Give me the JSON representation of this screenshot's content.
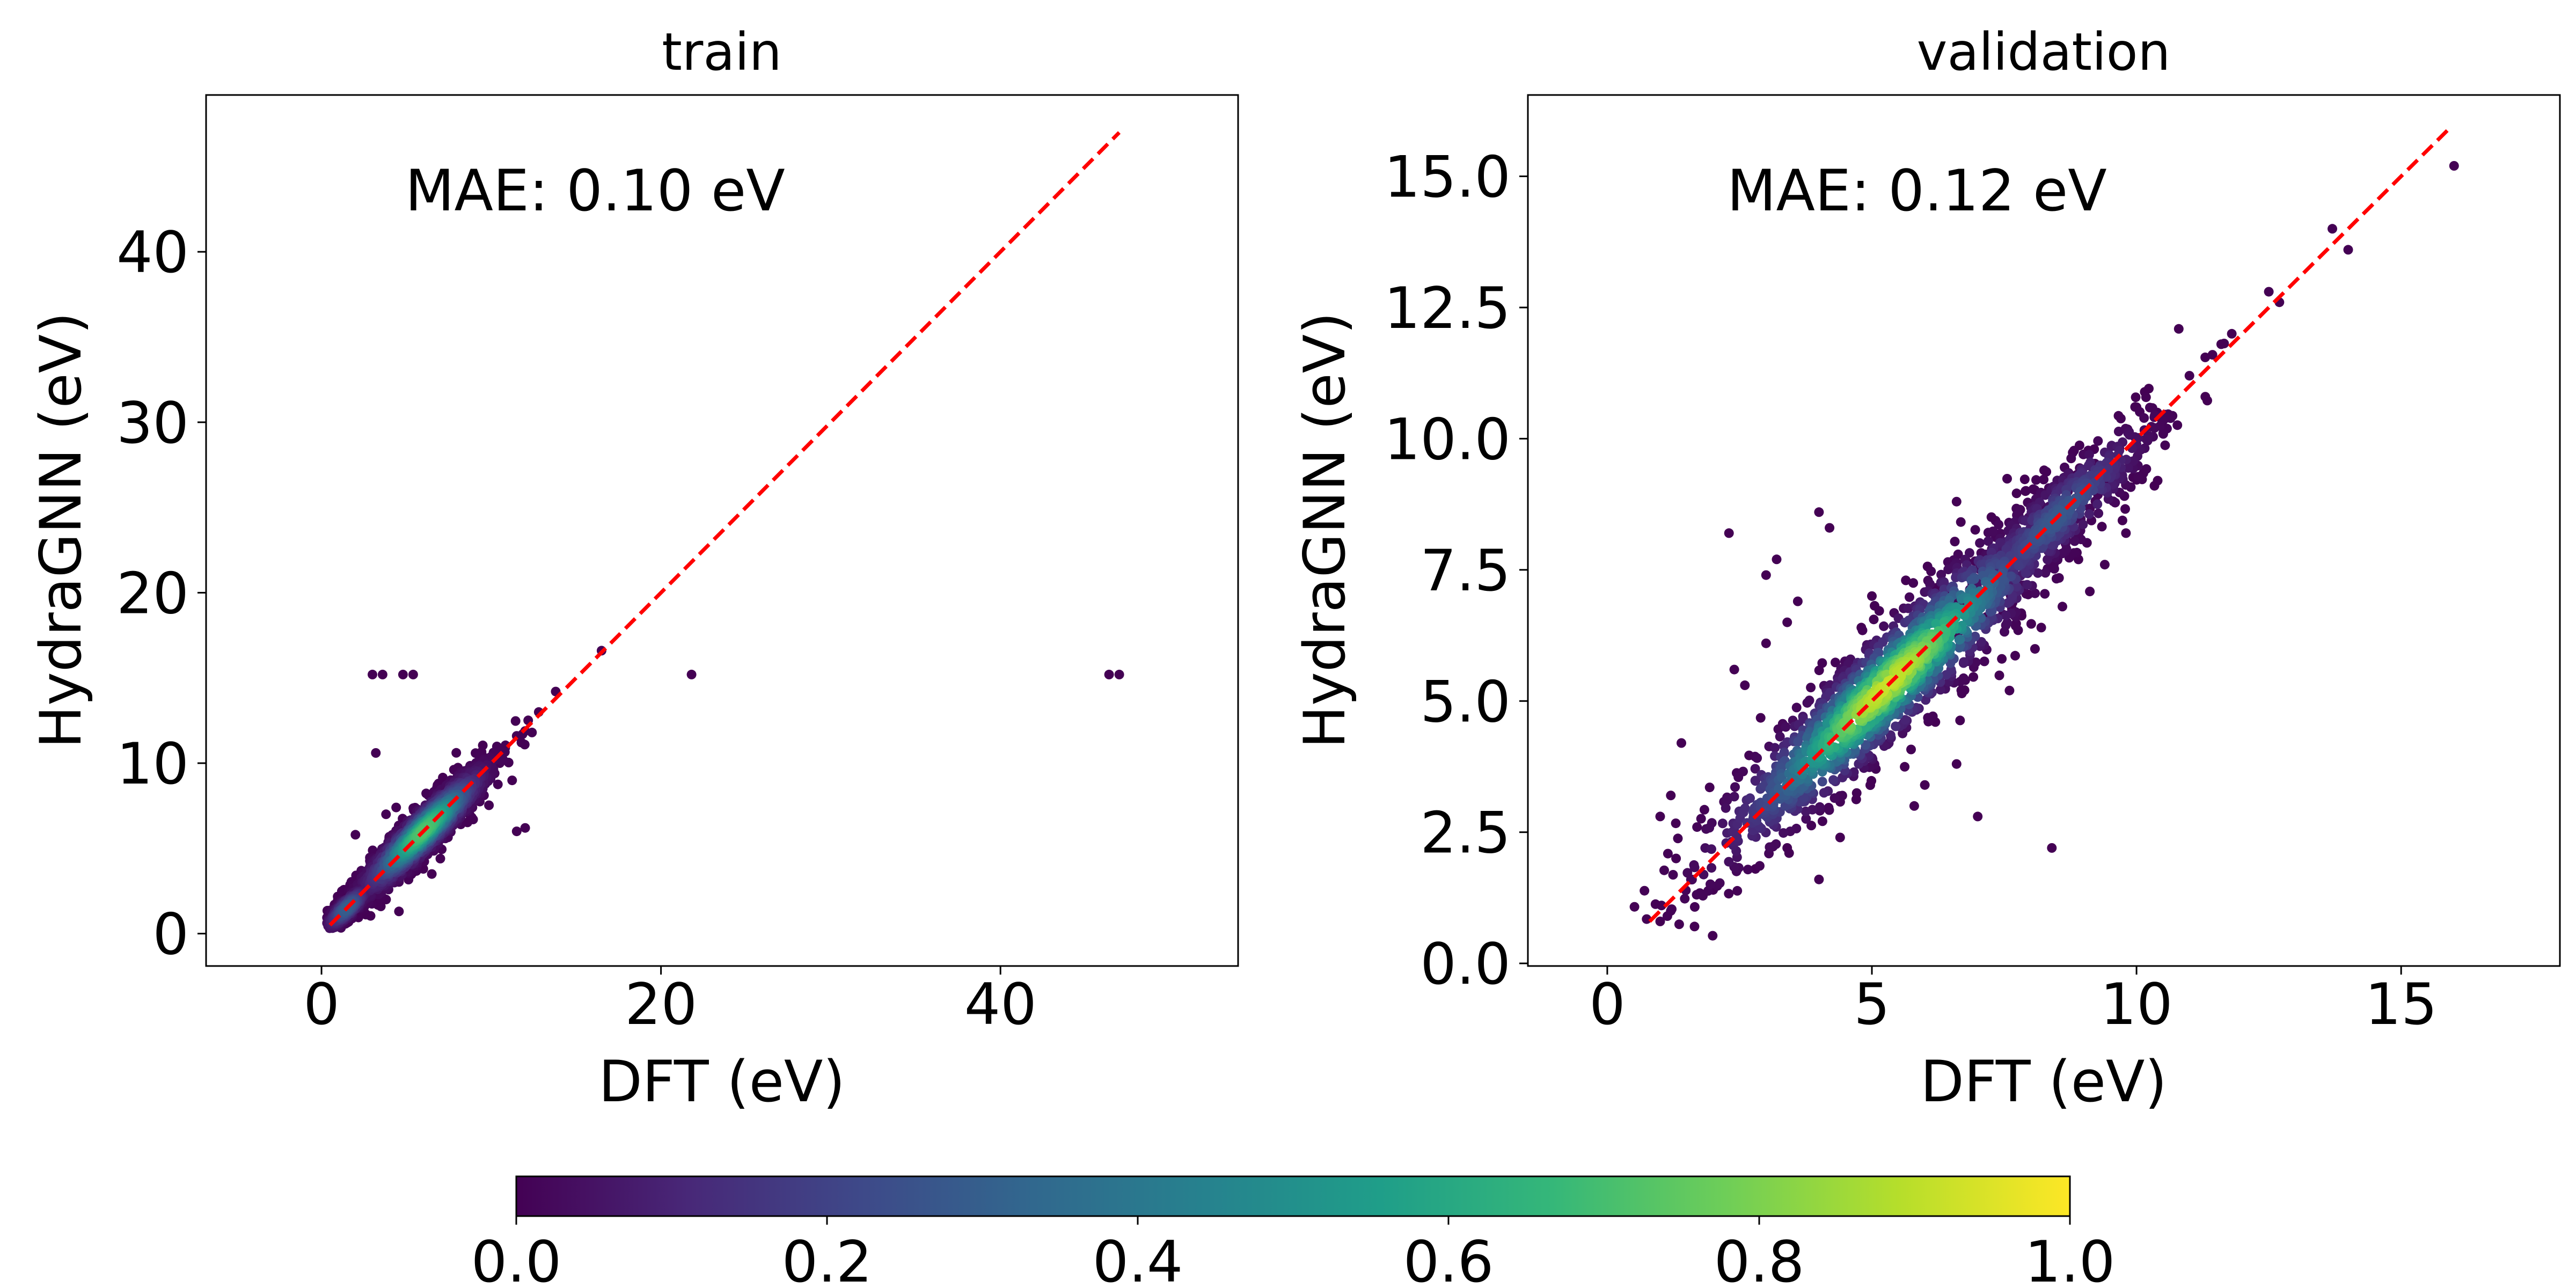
{
  "colormap": {
    "name": "viridis",
    "stops": [
      "#440154",
      "#482878",
      "#3e4989",
      "#31688e",
      "#26828e",
      "#1f9e89",
      "#35b779",
      "#6ece58",
      "#b5de2b",
      "#fde725"
    ]
  },
  "colorbar": {
    "range": [
      0.0,
      1.0
    ],
    "ticks": [
      0.0,
      0.2,
      0.4,
      0.6,
      0.8,
      1.0
    ],
    "tick_labels": [
      "0.0",
      "0.2",
      "0.4",
      "0.6",
      "0.8",
      "1.0"
    ]
  },
  "chart_data": [
    {
      "type": "scatter",
      "title": "train",
      "xlabel": "DFT (eV)",
      "ylabel": "HydraGNN (eV)",
      "annotation": "MAE: 0.10 eV",
      "xlim": [
        -6.8,
        54.0
      ],
      "ylim": [
        -1.9,
        49.2
      ],
      "xticks": [
        0,
        20,
        40
      ],
      "xtick_labels": [
        "0",
        "20",
        "40"
      ],
      "yticks": [
        0,
        10,
        20,
        30,
        40
      ],
      "ytick_labels": [
        "0",
        "10",
        "20",
        "30",
        "40"
      ],
      "reference_line": {
        "from": [
          0.5,
          0.5
        ],
        "to": [
          47,
          47
        ],
        "color": "#ff0000",
        "style": "dashed"
      },
      "point_color": "#440154",
      "dense_clusters": [
        {
          "center": [
            6.0,
            6.0
          ],
          "sigma_parallel": 2.8,
          "sigma_perp": 0.55,
          "peak_density": 0.72
        },
        {
          "center": [
            1.5,
            1.5
          ],
          "sigma_parallel": 1.0,
          "sigma_perp": 0.3,
          "peak_density": 0.3
        }
      ],
      "points": [
        [
          3.0,
          15.2
        ],
        [
          3.6,
          15.2
        ],
        [
          4.8,
          15.2
        ],
        [
          5.4,
          15.2
        ],
        [
          21.8,
          15.2
        ],
        [
          46.4,
          15.2
        ],
        [
          47.0,
          15.2
        ],
        [
          3.2,
          10.6
        ],
        [
          16.5,
          16.6
        ],
        [
          12.0,
          6.2
        ],
        [
          11.5,
          6.0
        ],
        [
          2.0,
          5.8
        ],
        [
          13.8,
          14.2
        ],
        [
          12.8,
          13.0
        ],
        [
          11.5,
          11.6
        ],
        [
          9.5,
          10.4
        ],
        [
          10.5,
          10.0
        ],
        [
          8.0,
          9.2
        ],
        [
          8.8,
          8.6
        ],
        [
          2.4,
          3.4
        ],
        [
          3.8,
          7.0
        ],
        [
          4.4,
          7.4
        ],
        [
          5.6,
          7.2
        ],
        [
          7.0,
          4.4
        ],
        [
          6.0,
          3.8
        ],
        [
          4.0,
          4.8
        ],
        [
          5.0,
          4.0
        ],
        [
          6.8,
          7.6
        ],
        [
          7.6,
          6.6
        ],
        [
          2.8,
          2.2
        ],
        [
          3.4,
          2.6
        ],
        [
          1.6,
          2.4
        ],
        [
          1.0,
          1.6
        ],
        [
          0.8,
          0.6
        ],
        [
          1.2,
          0.9
        ],
        [
          2.2,
          1.5
        ],
        [
          9.0,
          8.0
        ],
        [
          10.2,
          9.4
        ],
        [
          8.4,
          7.4
        ],
        [
          12.4,
          11.8
        ]
      ]
    },
    {
      "type": "scatter",
      "title": "validation",
      "xlabel": "DFT (eV)",
      "ylabel": "HydraGNN (eV)",
      "annotation": "MAE: 0.12 eV",
      "xlim": [
        -1.5,
        18.0
      ],
      "ylim": [
        -0.05,
        16.55
      ],
      "xticks": [
        0,
        5,
        10,
        15
      ],
      "xtick_labels": [
        "0",
        "5",
        "10",
        "15"
      ],
      "yticks": [
        0.0,
        2.5,
        5.0,
        7.5,
        10.0,
        12.5,
        15.0
      ],
      "ytick_labels": [
        "0.0",
        "2.5",
        "5.0",
        "7.5",
        "10.0",
        "12.5",
        "15.0"
      ],
      "reference_line": {
        "from": [
          0.8,
          0.8
        ],
        "to": [
          15.9,
          15.9
        ],
        "color": "#ff0000",
        "style": "dashed"
      },
      "point_color": "#440154",
      "dense_clusters": [
        {
          "center": [
            5.3,
            5.3
          ],
          "sigma_parallel": 2.4,
          "sigma_perp": 0.42,
          "peak_density": 0.92
        },
        {
          "center": [
            8.5,
            8.5
          ],
          "sigma_parallel": 1.4,
          "sigma_perp": 0.32,
          "peak_density": 0.28
        }
      ],
      "points": [
        [
          16.0,
          15.2
        ],
        [
          13.7,
          14.0
        ],
        [
          12.5,
          12.8
        ],
        [
          12.7,
          12.6
        ],
        [
          11.8,
          12.0
        ],
        [
          11.0,
          11.2
        ],
        [
          11.3,
          10.8
        ],
        [
          10.6,
          10.4
        ],
        [
          2.3,
          8.2
        ],
        [
          3.2,
          7.7
        ],
        [
          3.0,
          7.4
        ],
        [
          4.0,
          8.6
        ],
        [
          4.2,
          8.3
        ],
        [
          2.4,
          5.6
        ],
        [
          2.6,
          5.3
        ],
        [
          3.0,
          6.1
        ],
        [
          3.6,
          6.9
        ],
        [
          3.4,
          6.5
        ],
        [
          6.6,
          8.8
        ],
        [
          7.9,
          9.0
        ],
        [
          8.2,
          6.4
        ],
        [
          8.6,
          6.8
        ],
        [
          6.0,
          3.4
        ],
        [
          5.8,
          3.0
        ],
        [
          6.6,
          3.8
        ],
        [
          7.0,
          2.8
        ],
        [
          8.4,
          2.2
        ],
        [
          4.4,
          2.4
        ],
        [
          4.0,
          1.6
        ],
        [
          2.0,
          1.4
        ],
        [
          1.0,
          2.8
        ],
        [
          1.2,
          3.2
        ],
        [
          1.4,
          4.2
        ],
        [
          1.3,
          2.0
        ],
        [
          1.6,
          1.6
        ],
        [
          1.0,
          0.8
        ],
        [
          1.2,
          1.0
        ],
        [
          9.8,
          8.2
        ],
        [
          9.4,
          7.6
        ],
        [
          10.4,
          9.2
        ],
        [
          14.0,
          13.6
        ],
        [
          11.6,
          11.8
        ],
        [
          10.0,
          10.6
        ],
        [
          9.2,
          9.8
        ],
        [
          5.0,
          7.0
        ],
        [
          7.6,
          5.2
        ],
        [
          3.4,
          2.2
        ],
        [
          2.8,
          1.8
        ],
        [
          6.2,
          4.6
        ],
        [
          4.8,
          6.4
        ]
      ]
    }
  ]
}
